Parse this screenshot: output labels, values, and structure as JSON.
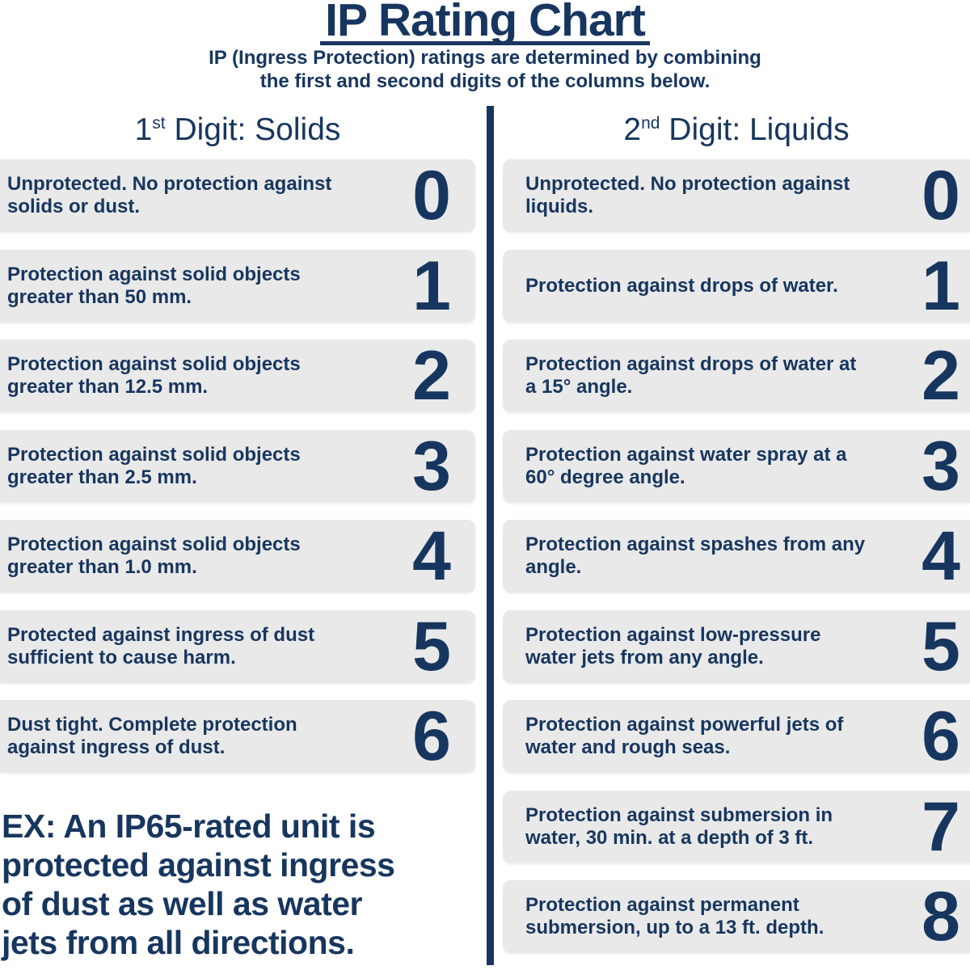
{
  "title": "IP Rating Chart",
  "subtitle": "IP (Ingress Protection) ratings are determined by combining\nthe first and second digits of the columns below.",
  "colors": {
    "navy": "#17365f",
    "row_bg": "#e9e9e9",
    "background": "#ffffff"
  },
  "columns": [
    {
      "id": "solids",
      "heading": {
        "number": "1",
        "ordinal": "st",
        "rest": " Digit: Solids"
      },
      "rows": [
        {
          "digit": "0",
          "description": "Unprotected. No protection against\nsolids or dust."
        },
        {
          "digit": "1",
          "description": "Protection against solid objects\ngreater than 50 mm."
        },
        {
          "digit": "2",
          "description": "Protection against solid objects\ngreater than 12.5 mm."
        },
        {
          "digit": "3",
          "description": "Protection against solid objects\ngreater than 2.5 mm."
        },
        {
          "digit": "4",
          "description": "Protection against solid objects\ngreater than 1.0 mm."
        },
        {
          "digit": "5",
          "description": "Protected against ingress of dust\nsufficient to cause harm."
        },
        {
          "digit": "6",
          "description": "Dust tight. Complete protection\nagainst ingress of dust."
        }
      ]
    },
    {
      "id": "liquids",
      "heading": {
        "number": "2",
        "ordinal": "nd",
        "rest": " Digit: Liquids"
      },
      "rows": [
        {
          "digit": "0",
          "description": "Unprotected. No protection against\nliquids."
        },
        {
          "digit": "1",
          "description": "Protection against drops of water."
        },
        {
          "digit": "2",
          "description": "Protection against drops of water at\na 15° angle."
        },
        {
          "digit": "3",
          "description": "Protection against water spray at a\n60° degree angle."
        },
        {
          "digit": "4",
          "description": "Protection against spashes from any\nangle."
        },
        {
          "digit": "5",
          "description": "Protection against low-pressure\nwater jets from any angle."
        },
        {
          "digit": "6",
          "description": "Protection against powerful jets of\nwater and rough seas."
        },
        {
          "digit": "7",
          "description": "Protection against submersion in\nwater, 30 min. at a depth of 3 ft."
        },
        {
          "digit": "8",
          "description": "Protection against permanent\nsubmersion, up to a 13 ft. depth."
        }
      ]
    }
  ],
  "example_note": "EX: An IP65-rated unit is\nprotected against ingress\nof dust as well as water\njets from all directions."
}
